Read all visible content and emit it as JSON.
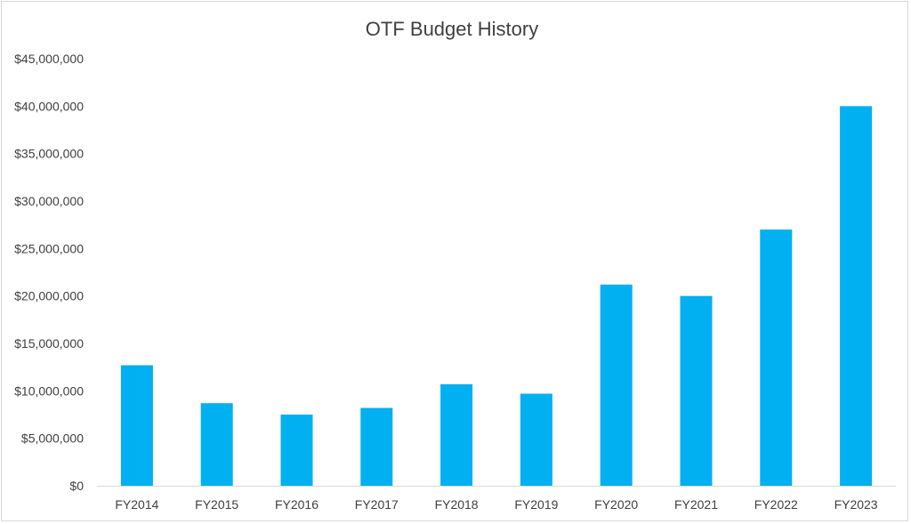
{
  "chart_data": {
    "type": "bar",
    "title": "OTF Budget History",
    "xlabel": "",
    "ylabel": "",
    "categories": [
      "FY2014",
      "FY2015",
      "FY2016",
      "FY2017",
      "FY2018",
      "FY2019",
      "FY2020",
      "FY2021",
      "FY2022",
      "FY2023"
    ],
    "values": [
      12700000,
      8700000,
      7500000,
      8200000,
      10700000,
      9700000,
      21200000,
      20000000,
      27000000,
      40000000
    ],
    "ylim": [
      0,
      45000000
    ],
    "y_ticks": [
      "$0",
      "$5,000,000",
      "$10,000,000",
      "$15,000,000",
      "$20,000,000",
      "$25,000,000",
      "$30,000,000",
      "$35,000,000",
      "$40,000,000",
      "$45,000,000"
    ],
    "grid": false,
    "legend": "none",
    "bar_color": "#00b0f0"
  }
}
